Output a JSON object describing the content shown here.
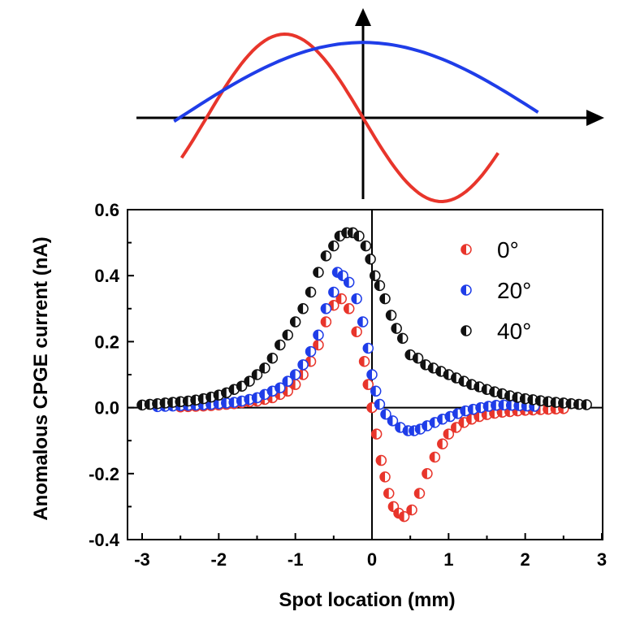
{
  "chart_data": [
    {
      "type": "line",
      "title": "",
      "xlabel": "",
      "ylabel": "",
      "description_series": [
        {
          "color": "#e8352b",
          "shape": "sine",
          "x_start": -1.68,
          "x_end": 1.25,
          "amplitude": 1.0
        },
        {
          "color": "#1f3de8",
          "shape": "cosine",
          "x_start": -1.75,
          "x_end": 1.62,
          "amplitude": 0.9
        }
      ],
      "axes_arrows": true
    },
    {
      "type": "scatter",
      "title": "",
      "xlabel": "Spot location (mm)",
      "ylabel": "Anomalous CPGE current (nA)",
      "xlim": [
        -3,
        3
      ],
      "ylim": [
        -0.4,
        0.6
      ],
      "x_ticks": [
        "-3",
        "-2",
        "-1",
        "0",
        "1",
        "2",
        "3"
      ],
      "y_ticks": [
        "-0.4",
        "-0.2",
        "0.0",
        "0.2",
        "0.4",
        "0.6"
      ],
      "legend_position": "top-right",
      "series": [
        {
          "name": "0°",
          "color": "#e8352b",
          "points": [
            [
              -2.5,
              0.002
            ],
            [
              -2.4,
              0.003
            ],
            [
              -2.3,
              0.004
            ],
            [
              -2.2,
              0.005
            ],
            [
              -2.1,
              0.006
            ],
            [
              -2.0,
              0.008
            ],
            [
              -1.9,
              0.01
            ],
            [
              -1.8,
              0.012
            ],
            [
              -1.7,
              0.015
            ],
            [
              -1.6,
              0.018
            ],
            [
              -1.5,
              0.02
            ],
            [
              -1.4,
              0.025
            ],
            [
              -1.3,
              0.03
            ],
            [
              -1.2,
              0.04
            ],
            [
              -1.1,
              0.05
            ],
            [
              -1.0,
              0.07
            ],
            [
              -0.9,
              0.1
            ],
            [
              -0.8,
              0.14
            ],
            [
              -0.7,
              0.19
            ],
            [
              -0.6,
              0.26
            ],
            [
              -0.5,
              0.31
            ],
            [
              -0.4,
              0.33
            ],
            [
              -0.3,
              0.3
            ],
            [
              -0.2,
              0.23
            ],
            [
              -0.1,
              0.14
            ],
            [
              -0.05,
              0.07
            ],
            [
              0.0,
              0.0
            ],
            [
              0.06,
              -0.08
            ],
            [
              0.12,
              -0.16
            ],
            [
              0.17,
              -0.21
            ],
            [
              0.22,
              -0.26
            ],
            [
              0.28,
              -0.3
            ],
            [
              0.35,
              -0.32
            ],
            [
              0.42,
              -0.33
            ],
            [
              0.52,
              -0.31
            ],
            [
              0.62,
              -0.26
            ],
            [
              0.72,
              -0.2
            ],
            [
              0.82,
              -0.15
            ],
            [
              0.92,
              -0.11
            ],
            [
              1.0,
              -0.08
            ],
            [
              1.1,
              -0.06
            ],
            [
              1.2,
              -0.045
            ],
            [
              1.3,
              -0.035
            ],
            [
              1.4,
              -0.027
            ],
            [
              1.5,
              -0.021
            ],
            [
              1.6,
              -0.017
            ],
            [
              1.7,
              -0.014
            ],
            [
              1.8,
              -0.012
            ],
            [
              1.9,
              -0.01
            ],
            [
              2.0,
              -0.008
            ],
            [
              2.1,
              -0.007
            ],
            [
              2.2,
              -0.006
            ],
            [
              2.3,
              -0.005
            ],
            [
              2.4,
              -0.004
            ],
            [
              2.5,
              -0.003
            ]
          ]
        },
        {
          "name": "20°",
          "color": "#1f3de8",
          "points": [
            [
              -2.8,
              0.003
            ],
            [
              -2.7,
              0.004
            ],
            [
              -2.6,
              0.005
            ],
            [
              -2.5,
              0.006
            ],
            [
              -2.4,
              0.007
            ],
            [
              -2.3,
              0.008
            ],
            [
              -2.2,
              0.009
            ],
            [
              -2.1,
              0.01
            ],
            [
              -2.0,
              0.012
            ],
            [
              -1.9,
              0.014
            ],
            [
              -1.8,
              0.016
            ],
            [
              -1.7,
              0.02
            ],
            [
              -1.6,
              0.025
            ],
            [
              -1.5,
              0.03
            ],
            [
              -1.4,
              0.04
            ],
            [
              -1.3,
              0.05
            ],
            [
              -1.2,
              0.06
            ],
            [
              -1.1,
              0.08
            ],
            [
              -1.0,
              0.1
            ],
            [
              -0.9,
              0.13
            ],
            [
              -0.8,
              0.17
            ],
            [
              -0.7,
              0.22
            ],
            [
              -0.6,
              0.3
            ],
            [
              -0.5,
              0.35
            ],
            [
              -0.45,
              0.41
            ],
            [
              -0.38,
              0.4
            ],
            [
              -0.3,
              0.38
            ],
            [
              -0.2,
              0.33
            ],
            [
              -0.12,
              0.26
            ],
            [
              -0.05,
              0.18
            ],
            [
              0.0,
              0.1
            ],
            [
              0.05,
              0.05
            ],
            [
              0.1,
              0.01
            ],
            [
              0.18,
              -0.02
            ],
            [
              0.27,
              -0.04
            ],
            [
              0.37,
              -0.06
            ],
            [
              0.47,
              -0.07
            ],
            [
              0.55,
              -0.07
            ],
            [
              0.63,
              -0.065
            ],
            [
              0.72,
              -0.055
            ],
            [
              0.82,
              -0.045
            ],
            [
              0.92,
              -0.035
            ],
            [
              1.02,
              -0.027
            ],
            [
              1.12,
              -0.018
            ],
            [
              1.22,
              -0.01
            ],
            [
              1.32,
              -0.005
            ],
            [
              1.42,
              0.0
            ],
            [
              1.52,
              0.004
            ],
            [
              1.62,
              0.007
            ],
            [
              1.72,
              0.008
            ],
            [
              1.82,
              0.007
            ],
            [
              1.92,
              0.006
            ],
            [
              2.02,
              0.005
            ],
            [
              2.12,
              0.004
            ]
          ]
        },
        {
          "name": "40°",
          "color": "#111111",
          "points": [
            [
              -3.0,
              0.008
            ],
            [
              -2.9,
              0.01
            ],
            [
              -2.8,
              0.012
            ],
            [
              -2.7,
              0.014
            ],
            [
              -2.6,
              0.016
            ],
            [
              -2.5,
              0.018
            ],
            [
              -2.4,
              0.02
            ],
            [
              -2.3,
              0.023
            ],
            [
              -2.2,
              0.027
            ],
            [
              -2.1,
              0.032
            ],
            [
              -2.0,
              0.038
            ],
            [
              -1.9,
              0.045
            ],
            [
              -1.8,
              0.055
            ],
            [
              -1.7,
              0.065
            ],
            [
              -1.6,
              0.08
            ],
            [
              -1.5,
              0.1
            ],
            [
              -1.4,
              0.12
            ],
            [
              -1.3,
              0.15
            ],
            [
              -1.2,
              0.19
            ],
            [
              -1.1,
              0.22
            ],
            [
              -1.0,
              0.26
            ],
            [
              -0.9,
              0.3
            ],
            [
              -0.8,
              0.35
            ],
            [
              -0.7,
              0.41
            ],
            [
              -0.6,
              0.46
            ],
            [
              -0.5,
              0.49
            ],
            [
              -0.42,
              0.52
            ],
            [
              -0.33,
              0.53
            ],
            [
              -0.25,
              0.53
            ],
            [
              -0.17,
              0.52
            ],
            [
              -0.08,
              0.49
            ],
            [
              -0.02,
              0.45
            ],
            [
              0.04,
              0.4
            ],
            [
              0.1,
              0.37
            ],
            [
              0.17,
              0.33
            ],
            [
              0.25,
              0.28
            ],
            [
              0.32,
              0.24
            ],
            [
              0.4,
              0.21
            ],
            [
              0.5,
              0.16
            ],
            [
              0.6,
              0.15
            ],
            [
              0.7,
              0.13
            ],
            [
              0.8,
              0.12
            ],
            [
              0.9,
              0.11
            ],
            [
              1.0,
              0.1
            ],
            [
              1.1,
              0.09
            ],
            [
              1.2,
              0.08
            ],
            [
              1.3,
              0.07
            ],
            [
              1.4,
              0.063
            ],
            [
              1.5,
              0.055
            ],
            [
              1.6,
              0.048
            ],
            [
              1.7,
              0.042
            ],
            [
              1.8,
              0.036
            ],
            [
              1.9,
              0.031
            ],
            [
              2.0,
              0.027
            ],
            [
              2.1,
              0.024
            ],
            [
              2.2,
              0.021
            ],
            [
              2.3,
              0.018
            ],
            [
              2.4,
              0.016
            ],
            [
              2.5,
              0.014
            ],
            [
              2.6,
              0.012
            ],
            [
              2.7,
              0.01
            ],
            [
              2.8,
              0.009
            ]
          ]
        }
      ]
    }
  ]
}
